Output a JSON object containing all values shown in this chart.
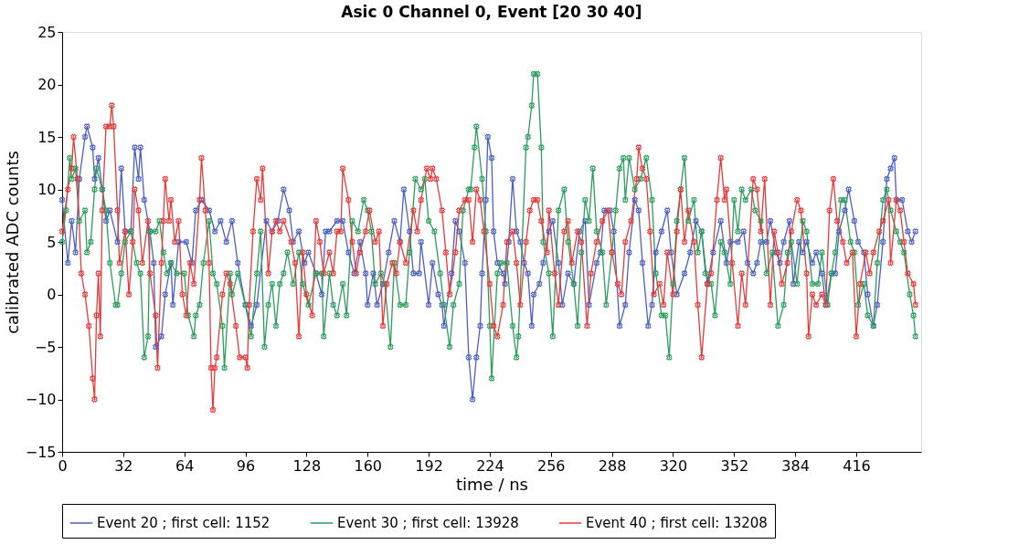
{
  "chart_data": {
    "type": "line",
    "title": "Asic 0 Channel 0, Event [20 30 40]",
    "xlabel": "time / ns",
    "ylabel": "calibrated ADC counts",
    "xlim": [
      0,
      450
    ],
    "xticks": [
      0,
      32,
      64,
      96,
      128,
      160,
      192,
      224,
      256,
      288,
      320,
      352,
      384,
      416
    ],
    "ylim": [
      -15,
      25
    ],
    "yticks": [
      -15,
      -10,
      -5,
      0,
      5,
      10,
      15,
      20,
      25
    ],
    "grid": false,
    "legend": "bottom",
    "marker": "cross",
    "line_style": "solid",
    "series": [
      {
        "name": "Event 20 ; first cell: 1152",
        "color": "#4c5fbf",
        "x": [
          0,
          3,
          5,
          7,
          9,
          12,
          13,
          16,
          17,
          19,
          21,
          23,
          25,
          29,
          31,
          33,
          36,
          38,
          40,
          41,
          43,
          46,
          48,
          49,
          52,
          54,
          57,
          58,
          61,
          65,
          68,
          70,
          73,
          77,
          80,
          83,
          86,
          89,
          92,
          96,
          99,
          102,
          107,
          110,
          113,
          116,
          119,
          121,
          124,
          127,
          129,
          133,
          136,
          138,
          140,
          144,
          147,
          150,
          153,
          156,
          159,
          160,
          163,
          165,
          168,
          171,
          174,
          177,
          179,
          182,
          184,
          187,
          188,
          192,
          194,
          197,
          199,
          200,
          204,
          206,
          208,
          211,
          213,
          215,
          217,
          219,
          220,
          222,
          223,
          225,
          226,
          228,
          231,
          232,
          234,
          236,
          238,
          240,
          242,
          244,
          246,
          247,
          250,
          252,
          255,
          257,
          260,
          262,
          265,
          268,
          271,
          274,
          276,
          280,
          282,
          284,
          287,
          289,
          292,
          295,
          297,
          300,
          302,
          304,
          307,
          309,
          311,
          314,
          317,
          319,
          322,
          326,
          329,
          332,
          335,
          338,
          341,
          345,
          348,
          350,
          354,
          357,
          359,
          362,
          364,
          366,
          369,
          371,
          374,
          376,
          378,
          381,
          383,
          386,
          388,
          390,
          393,
          395,
          398,
          400,
          403,
          405,
          407,
          410,
          412,
          415,
          417,
          420,
          422,
          425,
          427,
          430,
          432,
          434,
          436,
          437,
          440,
          443,
          445,
          447
        ],
        "values": [
          9,
          3,
          7,
          4,
          11,
          15,
          16,
          14,
          11,
          13,
          10,
          7,
          8,
          5,
          12,
          6,
          6,
          14,
          11,
          14,
          9,
          6,
          3,
          -5,
          -4,
          0,
          3,
          -1,
          5,
          5,
          3,
          8,
          9,
          8,
          6,
          7,
          5,
          7,
          3,
          -1,
          -3,
          -1,
          7,
          6,
          7,
          10,
          8,
          5,
          6,
          3,
          4,
          2,
          0,
          6,
          6,
          7,
          7,
          4,
          2,
          5,
          2,
          -1,
          2,
          -1,
          1,
          4,
          7,
          5,
          10,
          6,
          2,
          2,
          5,
          -1,
          3,
          0,
          -1,
          -3,
          2,
          7,
          6,
          3,
          -6,
          -10,
          -6,
          -3,
          2,
          9,
          15,
          13,
          6,
          3,
          2,
          1,
          5,
          11,
          6,
          5,
          3,
          2,
          -3,
          0,
          1,
          3,
          6,
          7,
          3,
          -1,
          2,
          1,
          6,
          7,
          -1,
          3,
          4,
          8,
          8,
          6,
          -3,
          -1,
          4,
          9,
          8,
          3,
          -3,
          -1,
          4,
          6,
          8,
          4,
          0,
          2,
          4,
          7,
          6,
          1,
          4,
          7,
          3,
          5,
          5,
          6,
          3,
          2,
          3,
          5,
          5,
          7,
          4,
          3,
          5,
          7,
          1,
          5,
          4,
          5,
          3,
          4,
          2,
          -1,
          2,
          2,
          6,
          8,
          10,
          7,
          5,
          4,
          0,
          -3,
          -1,
          5,
          11,
          12,
          13,
          9,
          9,
          6,
          5,
          6
        ]
      },
      {
        "name": "Event 30 ; first cell: 13928",
        "color": "#2a9d5c",
        "x": [
          0,
          2,
          4,
          5,
          7,
          9,
          12,
          13,
          15,
          17,
          18,
          21,
          23,
          25,
          28,
          29,
          31,
          33,
          36,
          39,
          41,
          43,
          45,
          46,
          49,
          51,
          53,
          55,
          57,
          60,
          64,
          66,
          69,
          70,
          72,
          74,
          77,
          79,
          81,
          84,
          85,
          88,
          89,
          92,
          96,
          99,
          102,
          104,
          106,
          108,
          110,
          112,
          114,
          116,
          118,
          121,
          124,
          126,
          129,
          133,
          136,
          137,
          140,
          142,
          144,
          147,
          149,
          152,
          155,
          158,
          160,
          162,
          164,
          167,
          169,
          172,
          174,
          177,
          180,
          182,
          185,
          188,
          190,
          192,
          195,
          198,
          200,
          203,
          205,
          208,
          210,
          213,
          214,
          216,
          217,
          220,
          222,
          224,
          225,
          228,
          230,
          233,
          236,
          238,
          239,
          243,
          244,
          246,
          247,
          249,
          251,
          252,
          255,
          257,
          260,
          263,
          265,
          268,
          270,
          272,
          274,
          276,
          278,
          280,
          283,
          285,
          288,
          290,
          292,
          294,
          295,
          297,
          300,
          303,
          306,
          309,
          311,
          314,
          316,
          318,
          320,
          322,
          324,
          326,
          328,
          331,
          333,
          335,
          337,
          340,
          342,
          345,
          347,
          350,
          352,
          354,
          356,
          358,
          361,
          363,
          366,
          369,
          372,
          375,
          378,
          380,
          382,
          385,
          388,
          390,
          393,
          396,
          398,
          401,
          403,
          405,
          408,
          410,
          413,
          415,
          417,
          420,
          422,
          425,
          427,
          430,
          432,
          434,
          437,
          439,
          441,
          444,
          446,
          447
        ],
        "values": [
          5,
          8,
          13,
          11,
          12,
          7,
          8,
          4,
          5,
          10,
          12,
          10,
          8,
          3,
          -1,
          -1,
          2,
          5,
          6,
          3,
          2,
          -6,
          -4,
          6,
          6,
          7,
          4,
          2,
          3,
          2,
          2,
          -2,
          -4,
          -2,
          -1,
          3,
          7,
          2,
          1,
          -3,
          -7,
          2,
          0,
          2,
          -1,
          -4,
          2,
          6,
          -5,
          -1,
          1,
          -3,
          1,
          2,
          4,
          1,
          4,
          1,
          -1,
          2,
          2,
          -4,
          2,
          -1,
          -2,
          1,
          -2,
          7,
          6,
          9,
          8,
          6,
          1,
          2,
          1,
          -5,
          3,
          -1,
          -1,
          4,
          11,
          10,
          11,
          7,
          6,
          2,
          -1,
          -5,
          -1,
          1,
          8,
          10,
          10,
          14,
          16,
          11,
          6,
          -3,
          -8,
          2,
          3,
          3,
          -3,
          -6,
          -4,
          14,
          15,
          18,
          21,
          21,
          14,
          5,
          2,
          -4,
          8,
          10,
          5,
          1,
          -3,
          4,
          9,
          7,
          12,
          6,
          4,
          -1,
          4,
          8,
          12,
          13,
          9,
          13,
          10,
          11,
          13,
          9,
          2,
          -2,
          -2,
          -6,
          1,
          7,
          10,
          13,
          7,
          9,
          4,
          6,
          2,
          1,
          -2,
          5,
          4,
          1,
          9,
          6,
          10,
          9,
          10,
          8,
          7,
          2,
          4,
          -3,
          -1,
          4,
          5,
          1,
          7,
          6,
          1,
          1,
          4,
          -1,
          2,
          4,
          9,
          9,
          5,
          4,
          -1,
          1,
          -2,
          -3,
          3,
          9,
          10,
          8,
          6,
          5,
          4,
          0,
          -2,
          -4
        ]
      },
      {
        "name": "Event 40 ; first cell: 13208",
        "color": "#e53a3a",
        "x": [
          0,
          3,
          5,
          6,
          8,
          10,
          12,
          14,
          16,
          17,
          18,
          19,
          20,
          21,
          23,
          25,
          26,
          27,
          29,
          30,
          33,
          35,
          37,
          38,
          40,
          42,
          45,
          46,
          49,
          50,
          52,
          53,
          54,
          56,
          57,
          59,
          61,
          63,
          65,
          67,
          69,
          72,
          73,
          75,
          77,
          78,
          79,
          80,
          81,
          84,
          86,
          88,
          91,
          93,
          96,
          97,
          98,
          100,
          102,
          104,
          105,
          108,
          110,
          112,
          114,
          116,
          120,
          122,
          124,
          126,
          128,
          131,
          133,
          135,
          137,
          140,
          142,
          144,
          146,
          147,
          150,
          152,
          154,
          156,
          159,
          161,
          164,
          166,
          168,
          170,
          173,
          175,
          177,
          180,
          184,
          186,
          188,
          191,
          193,
          194,
          196,
          199,
          201,
          203,
          206,
          208,
          211,
          213,
          215,
          217,
          219,
          221,
          224,
          226,
          228,
          231,
          233,
          236,
          238,
          240,
          243,
          245,
          247,
          249,
          251,
          254,
          255,
          258,
          260,
          263,
          265,
          267,
          270,
          272,
          275,
          277,
          280,
          283,
          286,
          288,
          291,
          293,
          295,
          298,
          301,
          302,
          304,
          306,
          308,
          310,
          313,
          315,
          317,
          320,
          322,
          324,
          326,
          328,
          331,
          333,
          335,
          338,
          340,
          343,
          345,
          347,
          348,
          351,
          354,
          356,
          358,
          362,
          364,
          366,
          368,
          371,
          373,
          375,
          377,
          380,
          382,
          385,
          387,
          390,
          391,
          393,
          395,
          398,
          400,
          402,
          404,
          406,
          409,
          411,
          414,
          416,
          418,
          421,
          423,
          425,
          428,
          430,
          433,
          434,
          437,
          439,
          441,
          443,
          446,
          447
        ],
        "values": [
          6,
          10,
          12,
          15,
          11,
          2,
          0,
          -3,
          -8,
          -10,
          -2,
          2,
          -4,
          8,
          16,
          16,
          18,
          16,
          8,
          3,
          6,
          0,
          5,
          10,
          8,
          3,
          7,
          2,
          -2,
          -7,
          3,
          7,
          11,
          7,
          9,
          5,
          7,
          0,
          -2,
          3,
          1,
          9,
          13,
          8,
          3,
          -7,
          -11,
          -7,
          -6,
          0,
          2,
          1,
          -3,
          -6,
          -6,
          -7,
          -1,
          6,
          11,
          9,
          12,
          2,
          6,
          7,
          6,
          7,
          5,
          3,
          -4,
          4,
          0,
          -2,
          7,
          5,
          2,
          4,
          2,
          6,
          6,
          12,
          9,
          5,
          2,
          4,
          6,
          8,
          5,
          6,
          -3,
          1,
          3,
          2,
          5,
          3,
          8,
          6,
          9,
          12,
          11,
          12,
          11,
          8,
          4,
          0,
          4,
          8,
          9,
          9,
          5,
          10,
          9,
          6,
          1,
          -3,
          -4,
          -1,
          5,
          6,
          3,
          -1,
          5,
          8,
          9,
          9,
          7,
          4,
          8,
          2,
          -1,
          6,
          7,
          3,
          6,
          5,
          -3,
          2,
          5,
          7,
          8,
          4,
          1,
          0,
          5,
          7,
          11,
          14,
          12,
          11,
          6,
          0,
          1,
          -1,
          4,
          0,
          6,
          10,
          5,
          8,
          5,
          -1,
          -6,
          1,
          2,
          9,
          13,
          9,
          10,
          3,
          -3,
          2,
          -1,
          11,
          10,
          6,
          11,
          -1,
          6,
          4,
          1,
          3,
          6,
          9,
          8,
          2,
          -4,
          0,
          -1,
          0,
          -1,
          8,
          11,
          7,
          5,
          3,
          4,
          -4,
          1,
          4,
          2,
          4,
          6,
          7,
          9,
          3,
          9,
          8,
          5,
          2,
          1,
          -1
        ]
      }
    ]
  }
}
